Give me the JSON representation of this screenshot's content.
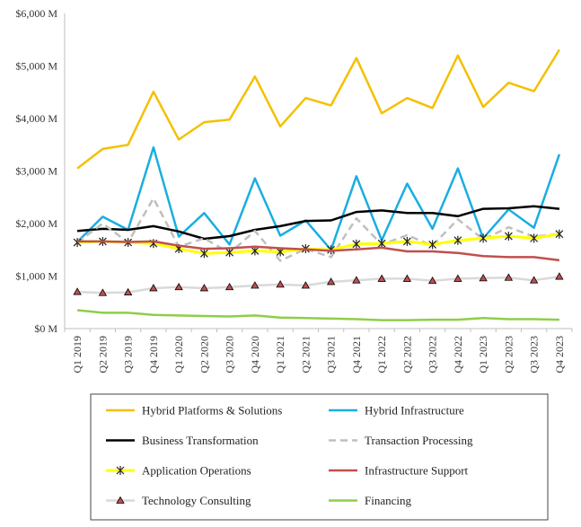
{
  "chart_data": {
    "type": "line",
    "title": "",
    "xlabel": "",
    "ylabel": "",
    "ylim": [
      0,
      6000
    ],
    "yticks": [
      0,
      1000,
      2000,
      3000,
      4000,
      5000,
      6000
    ],
    "ytick_labels": [
      "$0 M",
      "$1,000 M",
      "$2,000 M",
      "$3,000 M",
      "$4,000 M",
      "$5,000 M",
      "$6,000 M"
    ],
    "grid": false,
    "legend_placement": "bottom",
    "categories": [
      "Q1 2019",
      "Q2 2019",
      "Q3 2019",
      "Q4 2019",
      "Q1 2020",
      "Q2 2020",
      "Q3 2020",
      "Q4 2020",
      "Q1 2021",
      "Q2 2021",
      "Q3 2021",
      "Q4 2021",
      "Q1 2022",
      "Q2 2022",
      "Q3 2022",
      "Q4 2022",
      "Q1 2023",
      "Q2 2023",
      "Q3 2023",
      "Q4 2023"
    ],
    "series": [
      {
        "name": "Hybrid Platforms & Solutions",
        "color": "#F5C000",
        "width": 2.5,
        "dash": "",
        "marker": "",
        "values": [
          3050,
          3420,
          3500,
          4510,
          3600,
          3930,
          3980,
          4800,
          3850,
          4390,
          4250,
          5150,
          4100,
          4390,
          4200,
          5200,
          4220,
          4680,
          4520,
          5310
        ]
      },
      {
        "name": "Hybrid Infrastructure",
        "color": "#1AAEE0",
        "width": 2.5,
        "dash": "",
        "marker": "",
        "values": [
          1650,
          2130,
          1880,
          3450,
          1750,
          2200,
          1600,
          2860,
          1770,
          2060,
          1500,
          2900,
          1680,
          2760,
          1900,
          3050,
          1720,
          2270,
          1920,
          3320
        ]
      },
      {
        "name": "Business Transformation",
        "color": "#000000",
        "width": 2.5,
        "dash": "",
        "marker": "",
        "values": [
          1860,
          1900,
          1880,
          1950,
          1850,
          1710,
          1760,
          1880,
          1950,
          2050,
          2060,
          2220,
          2250,
          2200,
          2200,
          2140,
          2280,
          2290,
          2330,
          2280
        ]
      },
      {
        "name": "Transaction Processing",
        "color": "#BFBFBF",
        "width": 2.5,
        "dash": "8,5",
        "marker": "",
        "values": [
          1640,
          2000,
          1640,
          2480,
          1560,
          1720,
          1440,
          1860,
          1290,
          1520,
          1360,
          2100,
          1600,
          1780,
          1580,
          2080,
          1700,
          1930,
          1750,
          1800
        ]
      },
      {
        "name": "Application Operations",
        "color": "#FFFF00",
        "width": 3,
        "dash": "",
        "marker": "star",
        "values": [
          1640,
          1660,
          1640,
          1620,
          1520,
          1430,
          1450,
          1480,
          1460,
          1520,
          1500,
          1610,
          1620,
          1660,
          1600,
          1680,
          1720,
          1760,
          1720,
          1800
        ]
      },
      {
        "name": "Infrastructure Support",
        "color": "#C0504D",
        "width": 2.5,
        "dash": "",
        "marker": "",
        "values": [
          1660,
          1660,
          1650,
          1660,
          1580,
          1520,
          1530,
          1560,
          1530,
          1510,
          1480,
          1510,
          1540,
          1470,
          1470,
          1440,
          1380,
          1360,
          1360,
          1300
        ]
      },
      {
        "name": "Technology Consulting",
        "color": "#D9D9D9",
        "width": 2.5,
        "dash": "",
        "marker": "triangle",
        "values": [
          700,
          680,
          690,
          770,
          790,
          770,
          790,
          820,
          840,
          820,
          890,
          920,
          950,
          950,
          910,
          950,
          960,
          970,
          920,
          990
        ]
      },
      {
        "name": "Financing",
        "color": "#8FCE48",
        "width": 2.5,
        "dash": "",
        "marker": "",
        "values": [
          350,
          300,
          300,
          260,
          250,
          240,
          230,
          250,
          210,
          200,
          190,
          180,
          160,
          160,
          170,
          170,
          200,
          180,
          180,
          170
        ]
      }
    ]
  }
}
